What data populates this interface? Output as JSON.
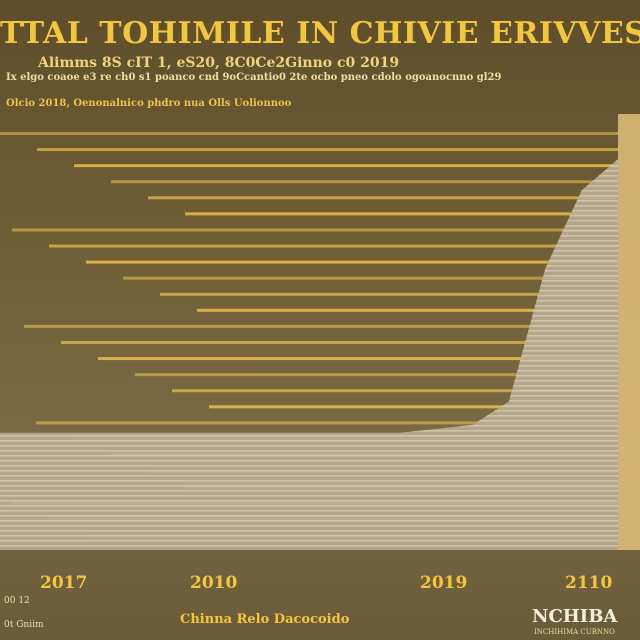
{
  "chart_data": {
    "type": "area",
    "title": "TTAL TOHIMILE IN CHIVIE ERIVVES CCHINNA",
    "subtitle": "Alimms 8S cIT 1, eS20, 8C0Ce2Ginno c0 2019",
    "xlabel": "Chinna Relo Dacocoido",
    "ylabel": "",
    "x_ticks": [
      "2017",
      "2010",
      "2019",
      "2110"
    ],
    "x": [
      0,
      1,
      2,
      3,
      4,
      5,
      6,
      7,
      8,
      9,
      10,
      11,
      12,
      13,
      14,
      15,
      16,
      17
    ],
    "values": [
      30,
      30,
      30,
      30,
      30,
      30,
      30,
      30,
      30,
      30,
      30,
      30,
      31,
      32,
      38,
      72,
      92,
      100
    ],
    "ylim": [
      0,
      110
    ],
    "grid": true,
    "legend": "none",
    "colors": {
      "band": "#f2c64a",
      "fill": "#b9ad93",
      "stripe": "#e8dcc0"
    }
  },
  "captions": {
    "line1": "Ix elgo coaoe e3 re ch0 s1 poanco cnd 9oCcantio0 2te ocbo pneo cdolo ogoanocnno gl29",
    "line2": "Olcio 2018, Oenonalnico phdro nua Olls Uolionnoo"
  },
  "footer": {
    "left": "00 12",
    "left2": "0t Gniim",
    "center": "Chinna Relo Dacocoido",
    "logo": "NCHIBA",
    "logo_sub": "INCHIHIMA CUBNNO"
  }
}
